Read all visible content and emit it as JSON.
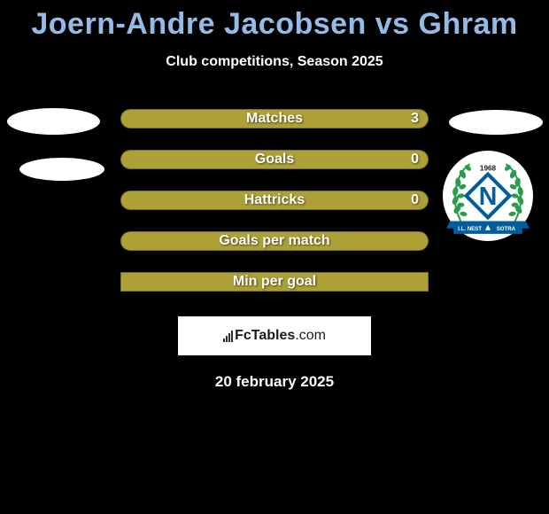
{
  "title": "Joern-Andre Jacobsen vs Ghram",
  "subtitle": "Club competitions, Season 2025",
  "stats": [
    {
      "label": "Matches",
      "value": "3",
      "rounded": true
    },
    {
      "label": "Goals",
      "value": "0",
      "rounded": true
    },
    {
      "label": "Hattricks",
      "value": "0",
      "rounded": true
    },
    {
      "label": "Goals per match",
      "value": "",
      "rounded": true
    },
    {
      "label": "Min per goal",
      "value": "",
      "rounded": false
    }
  ],
  "colors": {
    "bar_bg": "#aca037",
    "title_color": "#94bae7",
    "background": "#000000"
  },
  "crest": {
    "laurel_color": "#299d4c",
    "diamond_border": "#005e9c",
    "diamond_fill": "#ffffff",
    "letter_color": "#005e9c",
    "banner_fill": "#005e9c",
    "banner_text_left": "I.L. NEST",
    "banner_text_right": "SOTRA",
    "year": "1968"
  },
  "logo_text_bold": "FcTables",
  "logo_text_light": ".com",
  "date": "20 february 2025"
}
